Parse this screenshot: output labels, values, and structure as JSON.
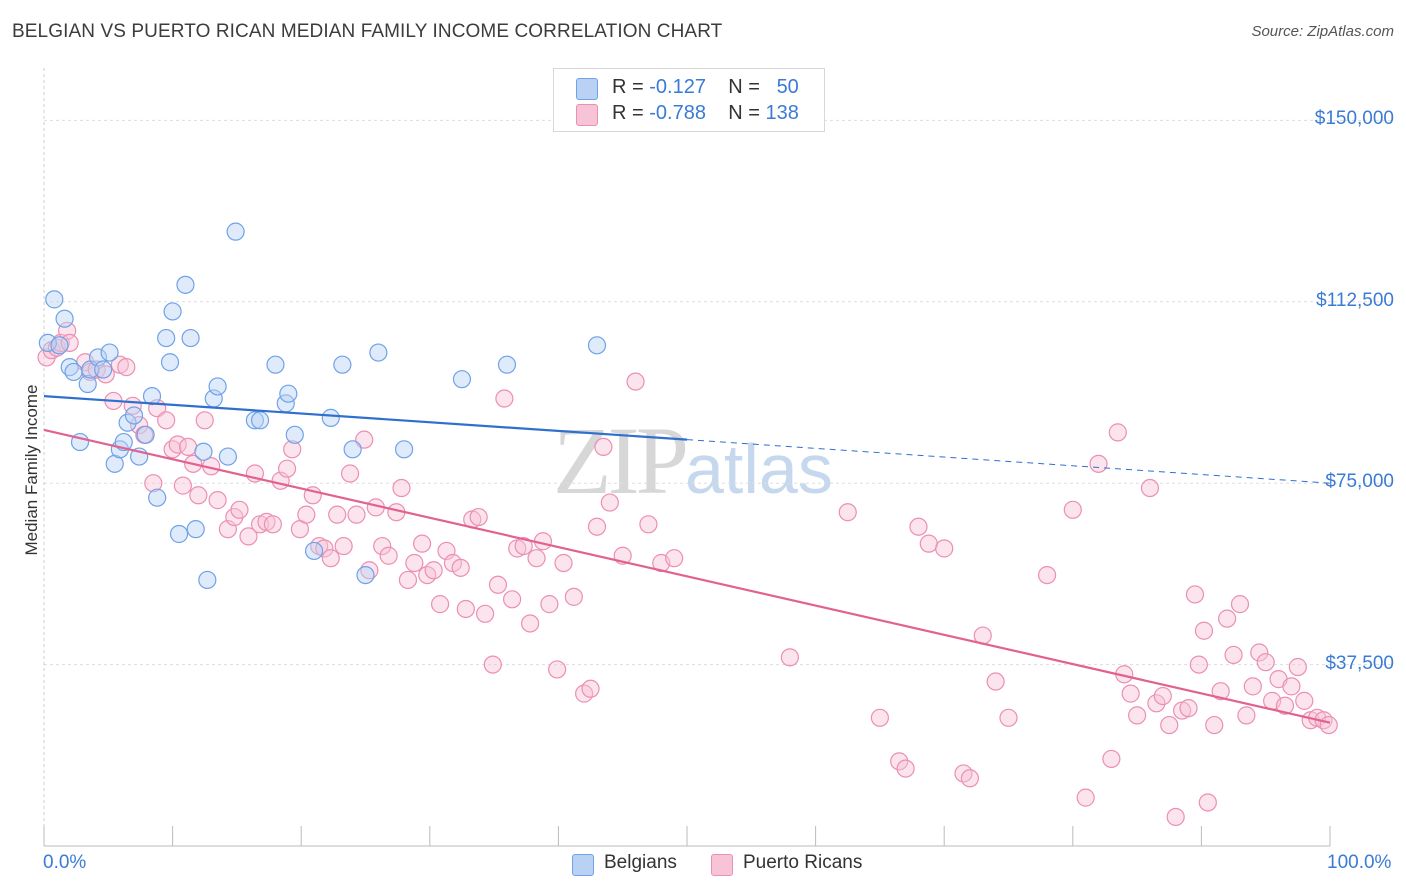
{
  "title": "BELGIAN VS PUERTO RICAN MEDIAN FAMILY INCOME CORRELATION CHART",
  "source": "Source: ZipAtlas.com",
  "watermark": {
    "zip": "ZIP",
    "atlas": "atlas"
  },
  "colors": {
    "belgians": "#6fa2e8",
    "belgians_fill": "#b9d2f3",
    "puerto_ricans": "#ec8fb1",
    "puerto_ricans_fill": "#f7c3d6",
    "trend_blue": "#2f6fcf",
    "trend_pink": "#e2628f",
    "axis_text": "#3a7bd5",
    "grid": "#dddddd"
  },
  "legend_top": [
    {
      "r_label": "R =",
      "r_value": "-0.127",
      "n_label": "N =",
      "n_value": "50"
    },
    {
      "r_label": "R =",
      "r_value": "-0.788",
      "n_label": "N =",
      "n_value": "138"
    }
  ],
  "chart_data": {
    "type": "scatter",
    "title": "BELGIAN VS PUERTO RICAN MEDIAN FAMILY INCOME CORRELATION CHART",
    "xlabel": "",
    "ylabel": "Median Family Income",
    "xlim": [
      0,
      100
    ],
    "ylim": [
      0,
      160000
    ],
    "x_tick_labels": [
      "0.0%",
      "100.0%"
    ],
    "y_ticks": [
      37500,
      75000,
      112500,
      150000
    ],
    "y_tick_labels": [
      "$37,500",
      "$75,000",
      "$112,500",
      "$150,000"
    ],
    "grid": true,
    "legend_position": "top-center",
    "series": [
      {
        "name": "Belgians",
        "r": -0.127,
        "n": 50,
        "trend": {
          "x_start": 0,
          "y_start": 93000,
          "x_end": 50,
          "y_end": 84000,
          "dashed_to_x": 100,
          "dashed_to_y": 75000
        },
        "points": [
          [
            0.3,
            104000
          ],
          [
            0.8,
            113000
          ],
          [
            1.2,
            103500
          ],
          [
            1.6,
            109000
          ],
          [
            2.0,
            99000
          ],
          [
            2.3,
            98000
          ],
          [
            2.8,
            83500
          ],
          [
            3.4,
            95500
          ],
          [
            3.6,
            98500
          ],
          [
            4.2,
            101000
          ],
          [
            4.6,
            98500
          ],
          [
            5.1,
            102000
          ],
          [
            5.5,
            79000
          ],
          [
            5.9,
            82000
          ],
          [
            6.2,
            83500
          ],
          [
            6.5,
            87500
          ],
          [
            7.0,
            89000
          ],
          [
            7.4,
            80500
          ],
          [
            7.9,
            85000
          ],
          [
            8.4,
            93000
          ],
          [
            8.8,
            72000
          ],
          [
            9.5,
            105000
          ],
          [
            9.8,
            100000
          ],
          [
            10.0,
            110500
          ],
          [
            10.5,
            64500
          ],
          [
            11.0,
            116000
          ],
          [
            11.4,
            105000
          ],
          [
            11.8,
            65500
          ],
          [
            12.4,
            81500
          ],
          [
            12.7,
            55000
          ],
          [
            13.2,
            92500
          ],
          [
            13.5,
            95000
          ],
          [
            14.3,
            80500
          ],
          [
            14.9,
            127000
          ],
          [
            16.4,
            88000
          ],
          [
            16.8,
            88000
          ],
          [
            18.0,
            99500
          ],
          [
            18.8,
            91500
          ],
          [
            19.0,
            93500
          ],
          [
            19.5,
            85000
          ],
          [
            21.0,
            61000
          ],
          [
            22.3,
            88500
          ],
          [
            23.2,
            99500
          ],
          [
            24.0,
            82000
          ],
          [
            25.0,
            56000
          ],
          [
            26.0,
            102000
          ],
          [
            28.0,
            82000
          ],
          [
            32.5,
            96500
          ],
          [
            36.0,
            99500
          ],
          [
            43.0,
            103500
          ]
        ]
      },
      {
        "name": "Puerto Ricans",
        "r": -0.788,
        "n": 138,
        "trend": {
          "x_start": 0,
          "y_start": 86000,
          "x_end": 100,
          "y_end": 25500
        },
        "points": [
          [
            0.2,
            101000
          ],
          [
            0.6,
            102500
          ],
          [
            1.0,
            103000
          ],
          [
            1.3,
            104000
          ],
          [
            1.8,
            106500
          ],
          [
            2.0,
            104000
          ],
          [
            3.2,
            100000
          ],
          [
            3.6,
            98000
          ],
          [
            4.1,
            98500
          ],
          [
            4.8,
            97500
          ],
          [
            5.4,
            92000
          ],
          [
            5.9,
            99500
          ],
          [
            6.4,
            99000
          ],
          [
            6.9,
            91000
          ],
          [
            7.4,
            87000
          ],
          [
            7.8,
            85000
          ],
          [
            8.5,
            75000
          ],
          [
            8.8,
            90500
          ],
          [
            9.5,
            88000
          ],
          [
            10.0,
            82000
          ],
          [
            10.4,
            83000
          ],
          [
            10.8,
            74500
          ],
          [
            11.2,
            82500
          ],
          [
            11.6,
            79000
          ],
          [
            12.0,
            72500
          ],
          [
            12.5,
            88000
          ],
          [
            13.0,
            78500
          ],
          [
            13.5,
            71500
          ],
          [
            14.3,
            65500
          ],
          [
            14.8,
            68000
          ],
          [
            15.2,
            69500
          ],
          [
            15.9,
            64000
          ],
          [
            16.4,
            77000
          ],
          [
            16.8,
            66500
          ],
          [
            17.3,
            67000
          ],
          [
            17.8,
            66500
          ],
          [
            18.4,
            75500
          ],
          [
            18.9,
            78000
          ],
          [
            19.3,
            82000
          ],
          [
            19.9,
            65500
          ],
          [
            20.4,
            68500
          ],
          [
            20.9,
            72500
          ],
          [
            21.4,
            62000
          ],
          [
            21.8,
            61500
          ],
          [
            22.3,
            59500
          ],
          [
            22.8,
            68500
          ],
          [
            23.3,
            62000
          ],
          [
            23.8,
            77000
          ],
          [
            24.3,
            68500
          ],
          [
            24.9,
            84000
          ],
          [
            25.3,
            57000
          ],
          [
            25.8,
            70000
          ],
          [
            26.3,
            62000
          ],
          [
            26.8,
            60000
          ],
          [
            27.4,
            69000
          ],
          [
            27.8,
            74000
          ],
          [
            28.3,
            55000
          ],
          [
            28.8,
            58500
          ],
          [
            29.4,
            62500
          ],
          [
            29.8,
            56000
          ],
          [
            30.3,
            57000
          ],
          [
            30.8,
            50000
          ],
          [
            31.3,
            61000
          ],
          [
            31.8,
            58500
          ],
          [
            32.4,
            57500
          ],
          [
            32.8,
            49000
          ],
          [
            33.3,
            67500
          ],
          [
            33.8,
            68000
          ],
          [
            34.3,
            48000
          ],
          [
            34.9,
            37500
          ],
          [
            35.3,
            54000
          ],
          [
            35.8,
            92500
          ],
          [
            36.4,
            51000
          ],
          [
            36.8,
            61500
          ],
          [
            37.3,
            62000
          ],
          [
            37.8,
            46000
          ],
          [
            38.3,
            59500
          ],
          [
            38.8,
            63000
          ],
          [
            39.3,
            50000
          ],
          [
            39.9,
            36500
          ],
          [
            40.4,
            58500
          ],
          [
            41.2,
            51500
          ],
          [
            42.0,
            31500
          ],
          [
            42.5,
            32500
          ],
          [
            43.0,
            66000
          ],
          [
            43.5,
            82500
          ],
          [
            44.0,
            71000
          ],
          [
            45.0,
            60000
          ],
          [
            46.0,
            96000
          ],
          [
            47.0,
            66500
          ],
          [
            48.0,
            58500
          ],
          [
            49.0,
            59500
          ],
          [
            58.0,
            39000
          ],
          [
            62.5,
            69000
          ],
          [
            65.0,
            26500
          ],
          [
            66.5,
            17500
          ],
          [
            67.0,
            16000
          ],
          [
            68.0,
            66000
          ],
          [
            68.8,
            62500
          ],
          [
            70.0,
            61500
          ],
          [
            71.5,
            15000
          ],
          [
            72.0,
            14000
          ],
          [
            73.0,
            43500
          ],
          [
            74.0,
            34000
          ],
          [
            75.0,
            26500
          ],
          [
            78.0,
            56000
          ],
          [
            80.0,
            69500
          ],
          [
            81.0,
            10000
          ],
          [
            82.0,
            79000
          ],
          [
            83.0,
            18000
          ],
          [
            83.5,
            85500
          ],
          [
            84.0,
            35500
          ],
          [
            84.5,
            31500
          ],
          [
            85.0,
            27000
          ],
          [
            86.0,
            74000
          ],
          [
            86.5,
            29500
          ],
          [
            87.0,
            31000
          ],
          [
            87.5,
            25000
          ],
          [
            88.0,
            6000
          ],
          [
            88.5,
            28000
          ],
          [
            89.0,
            28500
          ],
          [
            89.5,
            52000
          ],
          [
            89.8,
            37500
          ],
          [
            90.2,
            44500
          ],
          [
            90.5,
            9000
          ],
          [
            91.0,
            25000
          ],
          [
            91.5,
            32000
          ],
          [
            92.0,
            47000
          ],
          [
            92.5,
            39500
          ],
          [
            93.0,
            50000
          ],
          [
            93.5,
            27000
          ],
          [
            94.0,
            33000
          ],
          [
            94.5,
            40000
          ],
          [
            95.0,
            38000
          ],
          [
            95.5,
            30000
          ],
          [
            96.0,
            34500
          ],
          [
            96.5,
            29000
          ],
          [
            97.0,
            33000
          ],
          [
            97.5,
            37000
          ],
          [
            98.0,
            30000
          ],
          [
            98.5,
            26000
          ],
          [
            99.0,
            26500
          ],
          [
            99.5,
            26000
          ],
          [
            99.9,
            25000
          ]
        ]
      }
    ]
  },
  "legend_bottom": [
    {
      "label": "Belgians"
    },
    {
      "label": "Puerto Ricans"
    }
  ]
}
